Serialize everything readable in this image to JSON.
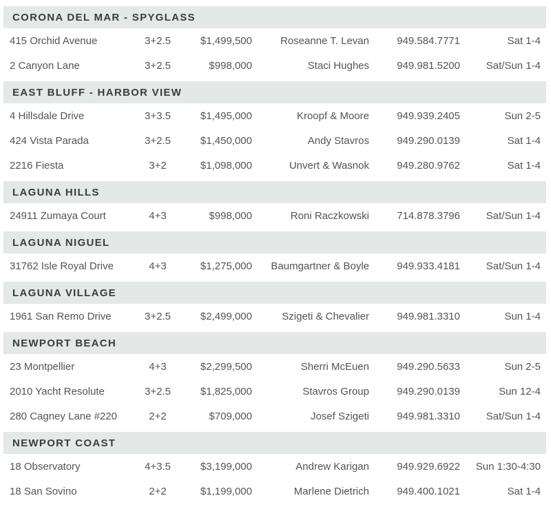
{
  "document_type": "open-house-listings",
  "colors": {
    "section_band": "#e4e8e6",
    "header_text": "#3a3d3c",
    "row_text": "#515457",
    "page_background": "#ffffff"
  },
  "columns": [
    "address",
    "beds_baths",
    "price",
    "agent",
    "phone",
    "open_time"
  ],
  "sections": [
    {
      "name": "CORONA DEL MAR - SPYGLASS",
      "listings": [
        {
          "address": "415 Orchid Avenue",
          "beds_baths": "3+2.5",
          "price": "$1,499,500",
          "agent": "Roseanne T. Levan",
          "phone": "949.584.7771",
          "open_time": "Sat 1-4"
        },
        {
          "address": "2 Canyon Lane",
          "beds_baths": "3+2.5",
          "price": "$998,000",
          "agent": "Staci Hughes",
          "phone": "949.981.5200",
          "open_time": "Sat/Sun 1-4"
        }
      ]
    },
    {
      "name": "EAST BLUFF - HARBOR VIEW",
      "listings": [
        {
          "address": "4 Hillsdale Drive",
          "beds_baths": "3+3.5",
          "price": "$1,495,000",
          "agent": "Kroopf & Moore",
          "phone": "949.939.2405",
          "open_time": "Sun 2-5"
        },
        {
          "address": "424 Vista Parada",
          "beds_baths": "3+2.5",
          "price": "$1,450,000",
          "agent": "Andy Stavros",
          "phone": "949.290.0139",
          "open_time": "Sat 1-4"
        },
        {
          "address": "2216 Fiesta",
          "beds_baths": "3+2",
          "price": "$1,098,000",
          "agent": "Unvert & Wasnok",
          "phone": "949.280.9762",
          "open_time": "Sat 1-4"
        }
      ]
    },
    {
      "name": "LAGUNA HILLS",
      "listings": [
        {
          "address": "24911 Zumaya Court",
          "beds_baths": "4+3",
          "price": "$998,000",
          "agent": "Roni Raczkowski",
          "phone": "714.878.3796",
          "open_time": "Sat/Sun 1-4"
        }
      ]
    },
    {
      "name": "LAGUNA NIGUEL",
      "listings": [
        {
          "address": "31762 Isle Royal Drive",
          "beds_baths": "4+3",
          "price": "$1,275,000",
          "agent": "Baumgartner & Boyle",
          "phone": "949.933.4181",
          "open_time": "Sat/Sun 1-4"
        }
      ]
    },
    {
      "name": "LAGUNA VILLAGE",
      "listings": [
        {
          "address": "1961 San Remo Drive",
          "beds_baths": "3+2.5",
          "price": "$2,499,000",
          "agent": "Szigeti & Chevalier",
          "phone": "949.981.3310",
          "open_time": "Sun 1-4"
        }
      ]
    },
    {
      "name": "NEWPORT BEACH",
      "listings": [
        {
          "address": "23 Montpellier",
          "beds_baths": "4+3",
          "price": "$2,299,500",
          "agent": "Sherri McEuen",
          "phone": "949.290.5633",
          "open_time": "Sun 2-5"
        },
        {
          "address": "2010 Yacht Resolute",
          "beds_baths": "3+2.5",
          "price": "$1,825,000",
          "agent": "Stavros Group",
          "phone": "949.290.0139",
          "open_time": "Sun 12-4"
        },
        {
          "address": "280 Cagney Lane #220",
          "beds_baths": "2+2",
          "price": "$709,000",
          "agent": "Josef Szigeti",
          "phone": "949.981.3310",
          "open_time": "Sat/Sun 1-4"
        }
      ]
    },
    {
      "name": "NEWPORT COAST",
      "listings": [
        {
          "address": "18 Observatory",
          "beds_baths": "4+3.5",
          "price": "$3,199,000",
          "agent": "Andrew Karigan",
          "phone": "949.929.6922",
          "open_time": "Sun 1:30-4:30"
        },
        {
          "address": "18 San Sovino",
          "beds_baths": "2+2",
          "price": "$1,199,000",
          "agent": "Marlene Dietrich",
          "phone": "949.400.1021",
          "open_time": "Sat 1-4"
        }
      ]
    }
  ]
}
